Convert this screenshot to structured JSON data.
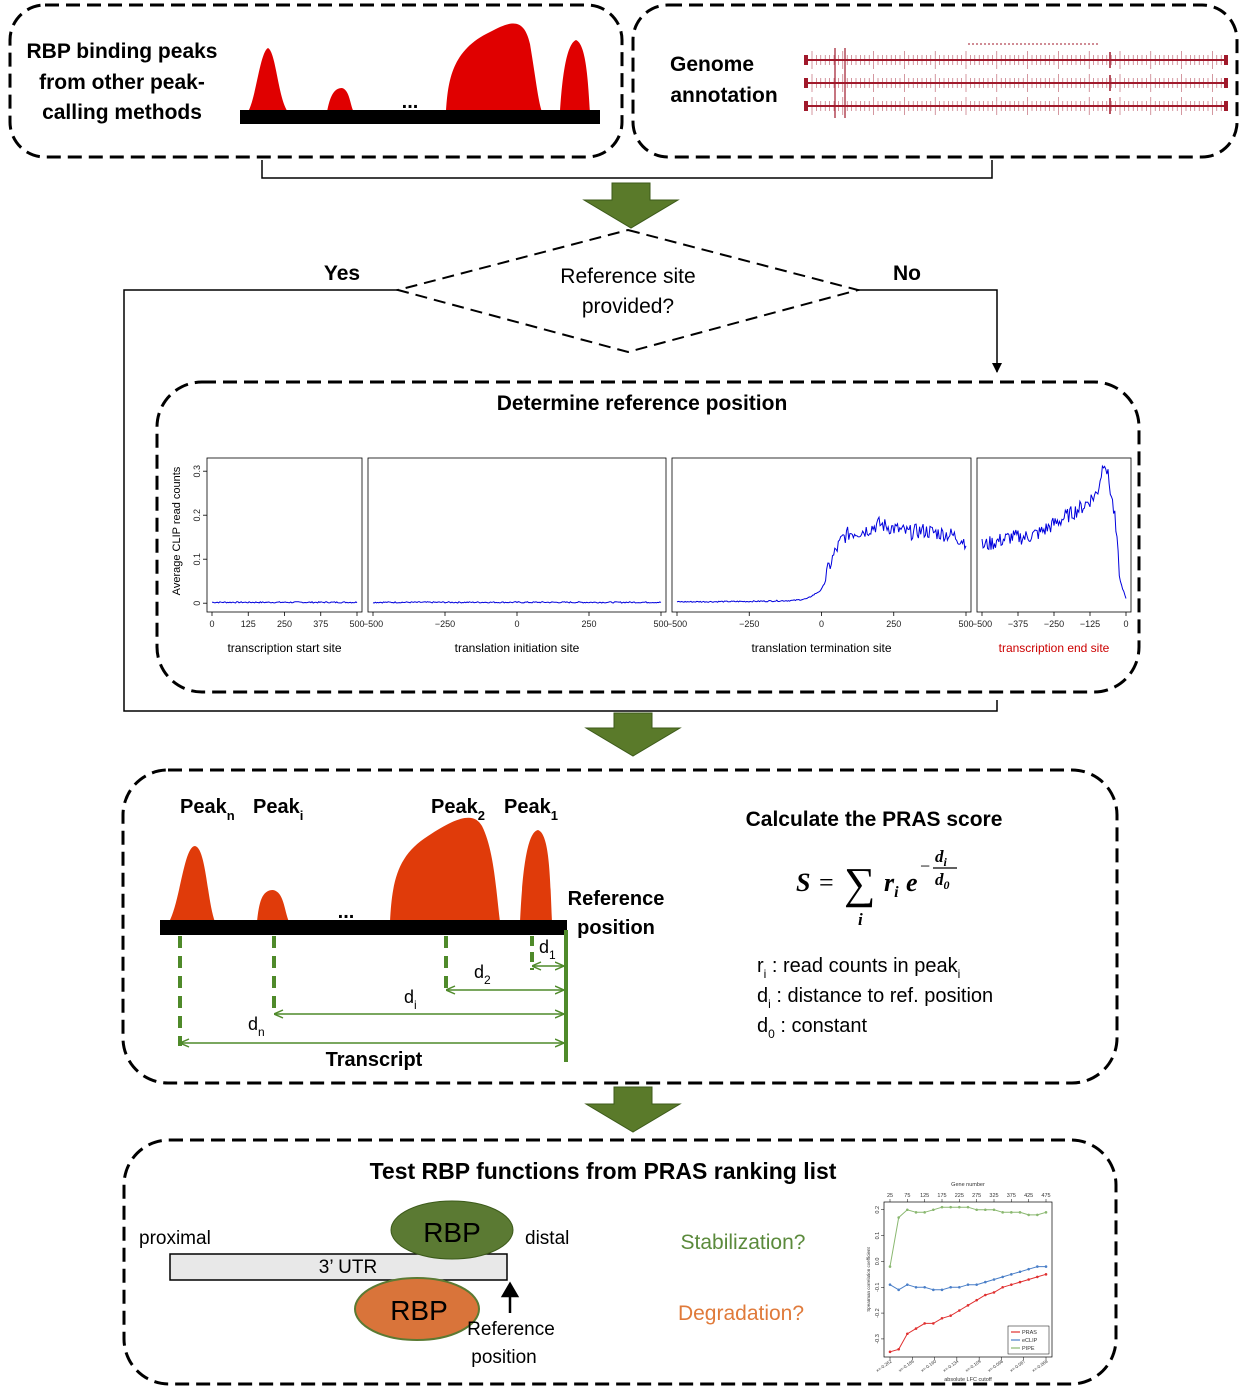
{
  "panel_input_peaks": {
    "label_lines": [
      "RBP binding peaks",
      "from other peak-",
      "calling methods"
    ],
    "ellipsis": "...",
    "peak_color": "#e00000"
  },
  "panel_genome": {
    "label_lines": [
      "Genome",
      "annotation"
    ],
    "track_color": "#a0192b"
  },
  "decision": {
    "question_lines": [
      "Reference site",
      "provided?"
    ],
    "yes_label": "Yes",
    "no_label": "No"
  },
  "reference_panel": {
    "title": "Determine reference position",
    "ylabel": "Average CLIP read counts"
  },
  "chart_data": [
    {
      "type": "line",
      "xlabel": "transcription  start site",
      "ylabel": "Average CLIP read counts",
      "ylim": [
        0,
        0.3
      ],
      "yticks": [
        "0",
        "0.1",
        "0.2",
        "0.3"
      ],
      "xticks": [
        "0",
        "125",
        "250",
        "375",
        "500"
      ],
      "x": [
        0,
        500
      ],
      "series": [
        {
          "values": [
            0.002,
            0.002
          ],
          "color": "#0000dd"
        }
      ]
    },
    {
      "type": "line",
      "xlabel": "translation  initiation  site",
      "ylim": [
        0,
        0.3
      ],
      "xticks": [
        "−500",
        "−250",
        "0",
        "250",
        "500"
      ],
      "x": [
        -500,
        500
      ],
      "series": [
        {
          "values": [
            0.002,
            0.002
          ],
          "color": "#0000dd"
        }
      ]
    },
    {
      "type": "line",
      "xlabel": "translation  termination  site",
      "ylim": [
        0,
        0.3
      ],
      "xticks": [
        "−500",
        "−250",
        "0",
        "250",
        "500"
      ],
      "x": [
        -500,
        -250,
        -100,
        -50,
        0,
        25,
        50,
        75,
        100,
        150,
        200,
        250,
        300,
        350,
        400,
        450,
        500
      ],
      "series": [
        {
          "values": [
            0.003,
            0.004,
            0.006,
            0.01,
            0.03,
            0.08,
            0.12,
            0.15,
            0.16,
            0.165,
            0.18,
            0.17,
            0.16,
            0.165,
            0.16,
            0.155,
            0.14
          ],
          "color": "#0000dd"
        }
      ]
    },
    {
      "type": "line",
      "xlabel": "transcription  end site",
      "xlabel_color": "#cc0000",
      "ylim": [
        0,
        0.3
      ],
      "xticks": [
        "−500",
        "−375",
        "−250",
        "−125",
        "0"
      ],
      "x": [
        -500,
        -450,
        -400,
        -350,
        -300,
        -250,
        -200,
        -150,
        -100,
        -75,
        -60,
        -40,
        -20,
        0
      ],
      "series": [
        {
          "values": [
            0.13,
            0.14,
            0.15,
            0.15,
            0.16,
            0.18,
            0.2,
            0.22,
            0.25,
            0.33,
            0.28,
            0.2,
            0.05,
            0.01
          ],
          "color": "#0000dd"
        }
      ]
    },
    {
      "type": "line",
      "top_axis_label": "Gene number",
      "top_ticks": [
        "25",
        "75",
        "125",
        "175",
        "225",
        "275",
        "325",
        "375",
        "425",
        "475"
      ],
      "ylabel": "Spearman correlation coefficient",
      "xlabel": "absolute LFC cutoff",
      "ylim": [
        -0.3,
        0.2
      ],
      "yticks": [
        "-0.3",
        "-0.2",
        "-0.1",
        "0.0",
        "0.1",
        "0.2"
      ],
      "xticks": [
        "x=-0.262",
        "x=-0.186",
        "x=-0.160",
        "x=-0.134",
        "x=-0.109",
        "x=-0.098",
        "x=-0.087",
        "x=-0.068"
      ],
      "legend_placement": "bottom-right",
      "x": [
        1,
        2,
        3,
        4,
        5,
        6,
        7,
        8,
        9,
        10,
        11,
        12,
        13,
        14,
        15,
        16,
        17,
        18,
        19
      ],
      "series": [
        {
          "name": "PRAS",
          "color": "#e03030",
          "values": [
            -0.35,
            -0.34,
            -0.28,
            -0.26,
            -0.24,
            -0.24,
            -0.22,
            -0.21,
            -0.19,
            -0.17,
            -0.15,
            -0.13,
            -0.12,
            -0.1,
            -0.09,
            -0.08,
            -0.07,
            -0.06,
            -0.05
          ]
        },
        {
          "name": "eCLIP",
          "color": "#4a7fc8",
          "values": [
            -0.09,
            -0.11,
            -0.09,
            -0.1,
            -0.1,
            -0.11,
            -0.11,
            -0.1,
            -0.1,
            -0.09,
            -0.09,
            -0.08,
            -0.07,
            -0.06,
            -0.05,
            -0.04,
            -0.03,
            -0.02,
            -0.02
          ]
        },
        {
          "name": "PIPE",
          "color": "#8ab870",
          "values": [
            -0.02,
            0.17,
            0.2,
            0.19,
            0.19,
            0.2,
            0.21,
            0.21,
            0.21,
            0.21,
            0.2,
            0.2,
            0.2,
            0.19,
            0.19,
            0.19,
            0.18,
            0.18,
            0.19
          ]
        }
      ]
    }
  ],
  "pras_panel": {
    "peak_labels": [
      {
        "base": "Peak",
        "sub": "n"
      },
      {
        "base": "Peak",
        "sub": "i"
      },
      {
        "base": "Peak",
        "sub": "2"
      },
      {
        "base": "Peak",
        "sub": "1"
      }
    ],
    "ellipsis": "...",
    "reference_lines": [
      "Reference",
      "position"
    ],
    "distance_labels": [
      {
        "base": "d",
        "sub": "1"
      },
      {
        "base": "d",
        "sub": "2"
      },
      {
        "base": "d",
        "sub": "i"
      },
      {
        "base": "d",
        "sub": "n"
      }
    ],
    "transcript_label": "Transcript",
    "title": "Calculate the  PRAS score",
    "formula": {
      "lhs": "S",
      "eq": "=",
      "sum": "∑",
      "index": "i",
      "r": "r",
      "r_sub": "i",
      "e": "e",
      "exp_minus": "−",
      "exp_num": "d",
      "exp_num_sub": "i",
      "exp_den": "d",
      "exp_den_sub": "0"
    },
    "definitions": [
      {
        "sym": "r",
        "sym_sub": "i",
        "text": " : read counts in peak",
        "tail_sub": "i"
      },
      {
        "sym": "d",
        "sym_sub": "i",
        "text": " : distance to ref. position",
        "tail_sub": ""
      },
      {
        "sym": "d",
        "sym_sub": "0",
        "text": " : constant",
        "tail_sub": ""
      }
    ],
    "peak_color": "#e03b0a",
    "line_color": "#4f8a2a"
  },
  "test_panel": {
    "title": "Test RBP functions from  PRAS ranking list",
    "proximal": "proximal",
    "distal": "distal",
    "utr_label": "3’ UTR",
    "rbp_top": "RBP",
    "rbp_bottom": "RBP",
    "reference_lines": [
      "Reference",
      "position"
    ],
    "stabilization": "Stabilization?",
    "degradation": "Degradation?",
    "stabilization_color": "#5b8a3c",
    "degradation_color": "#e07a3a"
  },
  "arrow_color": "#5a7a2a"
}
